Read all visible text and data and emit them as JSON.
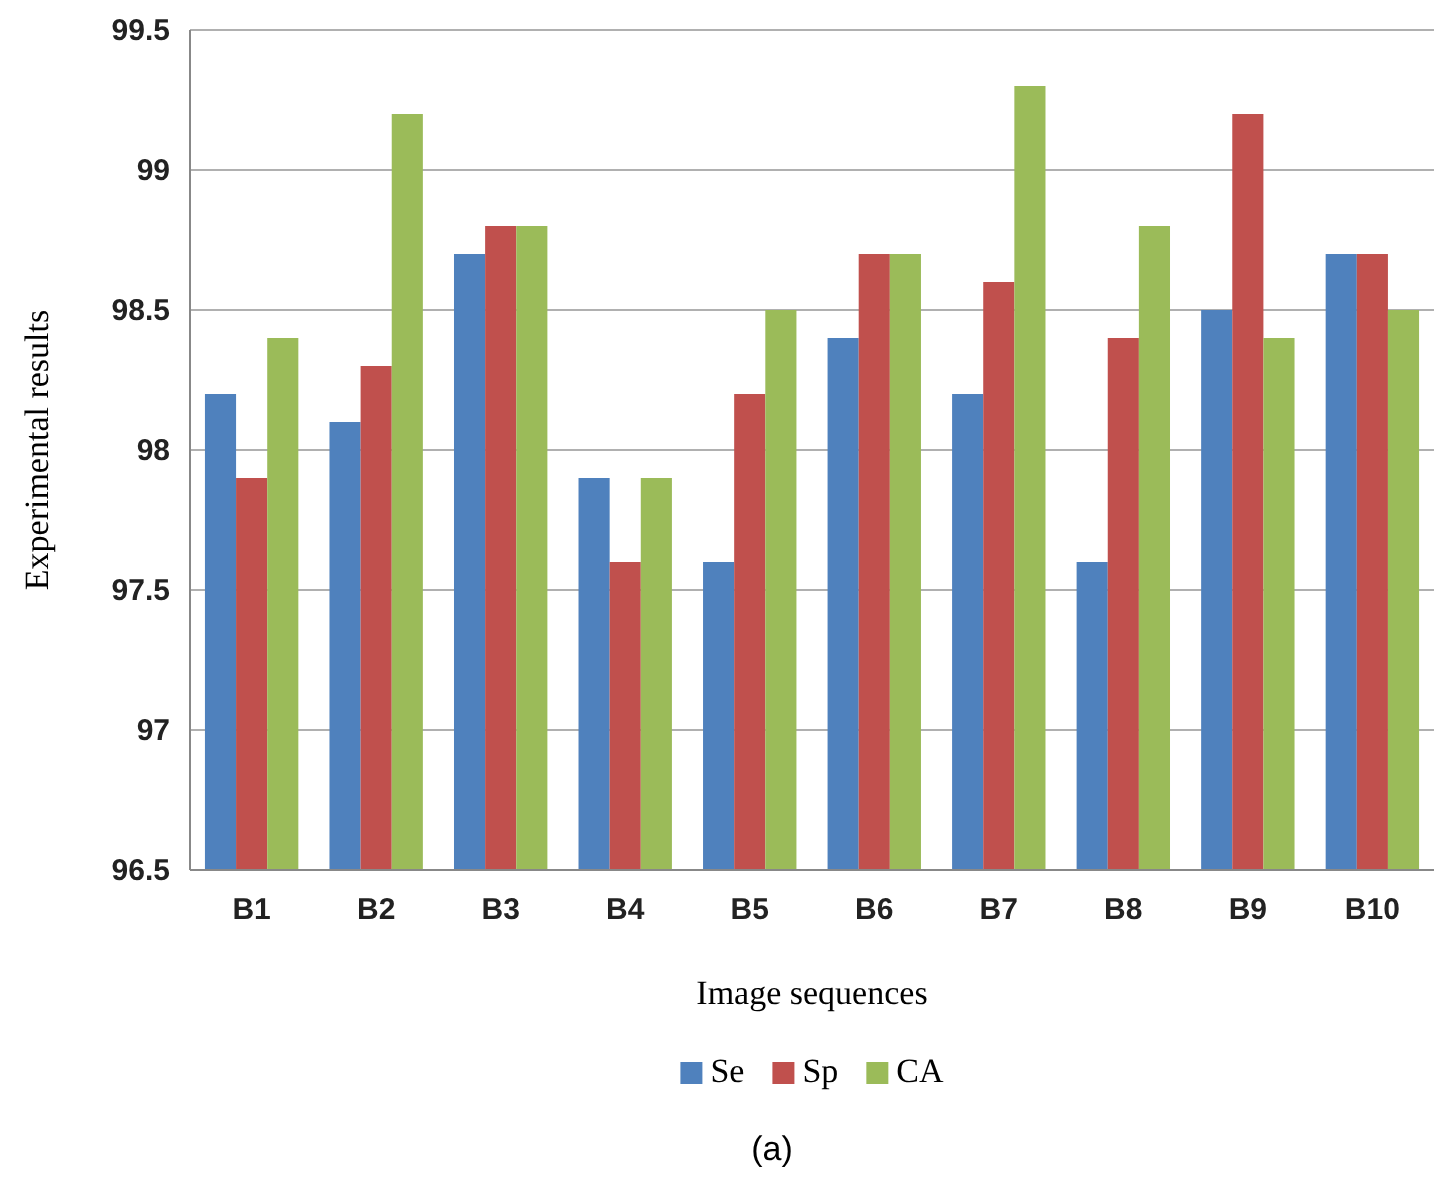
{
  "chart_data": {
    "type": "bar",
    "xlabel": "Image sequences",
    "ylabel": "Experimental results",
    "categories": [
      "B1",
      "B2",
      "B3",
      "B4",
      "B5",
      "B6",
      "B7",
      "B8",
      "B9",
      "B10"
    ],
    "series": [
      {
        "name": "Se",
        "color": "#4f81bd",
        "values": [
          98.2,
          98.1,
          98.7,
          97.9,
          97.6,
          98.4,
          98.2,
          97.6,
          98.5,
          98.7
        ]
      },
      {
        "name": "Sp",
        "color": "#c0504d",
        "values": [
          97.9,
          98.3,
          98.8,
          97.6,
          98.2,
          98.7,
          98.6,
          98.4,
          99.2,
          98.7
        ]
      },
      {
        "name": "CA",
        "color": "#9bbb59",
        "values": [
          98.4,
          99.2,
          98.8,
          97.9,
          98.5,
          98.7,
          99.3,
          98.8,
          98.4,
          98.5
        ]
      }
    ],
    "ylim": [
      96.5,
      99.5
    ],
    "yticks": [
      96.5,
      97,
      97.5,
      98,
      98.5,
      99,
      99.5
    ],
    "grid": "y",
    "legend": "bottom",
    "annotations": [
      "(a)"
    ]
  }
}
